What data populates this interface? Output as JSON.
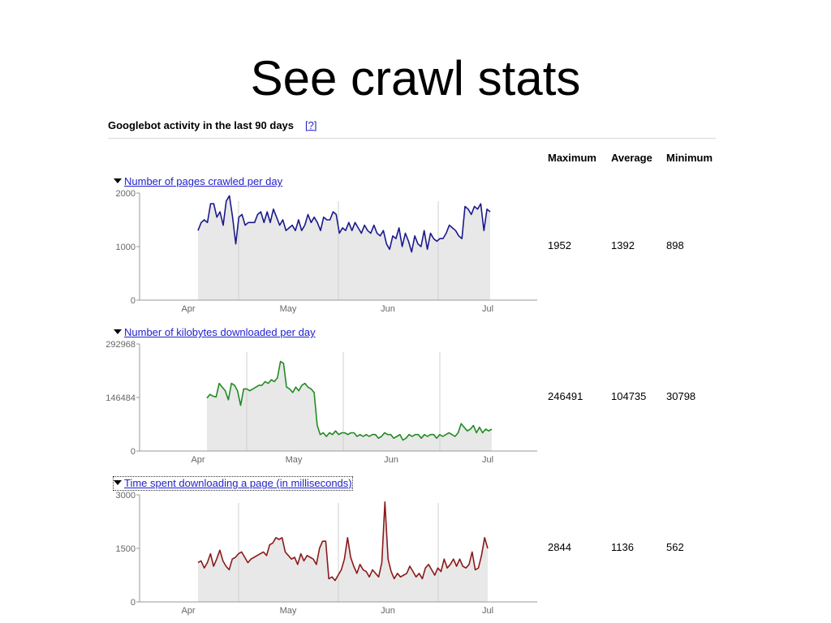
{
  "slide": {
    "title": "See crawl stats"
  },
  "panel": {
    "title": "Googlebot activity in the last 90 days",
    "help_link": "[?]",
    "columns": {
      "maximum": "Maximum",
      "average": "Average",
      "minimum": "Minimum"
    }
  },
  "charts": [
    {
      "label": "Number of pages crawled per day",
      "color": "#1a1a8c",
      "stats": {
        "maximum": "1952",
        "average": "1392",
        "minimum": "898"
      }
    },
    {
      "label": "Number of kilobytes downloaded per day",
      "color": "#228b22",
      "stats": {
        "maximum": "246491",
        "average": "104735",
        "minimum": "30798"
      }
    },
    {
      "label": "Time spent downloading a page (in milliseconds)",
      "color": "#8b1a1a",
      "stats": {
        "maximum": "2844",
        "average": "1136",
        "minimum": "562"
      }
    }
  ],
  "chart_data": [
    {
      "type": "area",
      "title": "Number of pages crawled per day",
      "xlabel": "",
      "ylabel": "",
      "x_ticks": [
        "Apr",
        "May",
        "Jun",
        "Jul"
      ],
      "y_ticks": [
        "2000",
        "1000",
        "0"
      ],
      "ylim": [
        0,
        2000
      ],
      "grid": false,
      "series": [
        {
          "name": "Number of pages crawled per day",
          "color": "#1a1a8c",
          "values": [
            1300,
            1450,
            1500,
            1450,
            1800,
            1800,
            1550,
            1650,
            1400,
            1850,
            1950,
            1550,
            1050,
            1550,
            1600,
            1400,
            1450,
            1450,
            1450,
            1600,
            1650,
            1450,
            1650,
            1450,
            1700,
            1550,
            1400,
            1500,
            1300,
            1350,
            1400,
            1300,
            1500,
            1300,
            1400,
            1600,
            1450,
            1550,
            1450,
            1300,
            1550,
            1500,
            1500,
            1650,
            1600,
            1250,
            1350,
            1300,
            1450,
            1300,
            1450,
            1350,
            1250,
            1400,
            1300,
            1250,
            1400,
            1250,
            1200,
            1300,
            1050,
            950,
            1200,
            1150,
            1350,
            1000,
            1250,
            1100,
            900,
            1200,
            1050,
            1000,
            1300,
            950,
            1250,
            1150,
            1100,
            1150,
            1150,
            1250,
            1400,
            1350,
            1300,
            1200,
            1150,
            1750,
            1700,
            1600,
            1750,
            1700,
            1800,
            1300,
            1700,
            1650
          ]
        }
      ]
    },
    {
      "type": "area",
      "title": "Number of kilobytes downloaded per day",
      "xlabel": "",
      "ylabel": "",
      "x_ticks": [
        "Apr",
        "May",
        "Jun",
        "Jul"
      ],
      "y_ticks": [
        "292968",
        "146484",
        "0"
      ],
      "ylim": [
        0,
        292968
      ],
      "grid": false,
      "series": [
        {
          "name": "Number of kilobytes downloaded per day",
          "color": "#228b22",
          "values": [
            145000,
            155000,
            150000,
            148000,
            185000,
            175000,
            165000,
            140000,
            185000,
            180000,
            165000,
            125000,
            170000,
            170000,
            165000,
            170000,
            175000,
            180000,
            180000,
            190000,
            185000,
            195000,
            190000,
            200000,
            245000,
            240000,
            175000,
            170000,
            160000,
            175000,
            165000,
            180000,
            185000,
            175000,
            170000,
            160000,
            70000,
            45000,
            50000,
            40000,
            50000,
            45000,
            55000,
            45000,
            50000,
            50000,
            45000,
            50000,
            50000,
            40000,
            45000,
            40000,
            45000,
            40000,
            45000,
            45000,
            35000,
            40000,
            50000,
            45000,
            45000,
            35000,
            40000,
            45000,
            30000,
            35000,
            45000,
            40000,
            45000,
            45000,
            35000,
            45000,
            40000,
            45000,
            45000,
            35000,
            45000,
            40000,
            45000,
            50000,
            45000,
            40000,
            50000,
            75000,
            65000,
            55000,
            60000,
            70000,
            50000,
            65000,
            50000,
            60000,
            55000,
            60000
          ]
        }
      ]
    },
    {
      "type": "area",
      "title": "Time spent downloading a page (in milliseconds)",
      "xlabel": "",
      "ylabel": "",
      "x_ticks": [
        "Apr",
        "May",
        "Jun",
        "Jul"
      ],
      "y_ticks": [
        "3000",
        "1500",
        "0"
      ],
      "ylim": [
        0,
        3000
      ],
      "grid": false,
      "series": [
        {
          "name": "Time spent downloading a page (in milliseconds)",
          "color": "#8b1a1a",
          "values": [
            1100,
            1150,
            950,
            1100,
            1350,
            1000,
            1200,
            1450,
            1150,
            1000,
            900,
            1200,
            1250,
            1350,
            1400,
            1250,
            1100,
            1200,
            1250,
            1300,
            1350,
            1400,
            1300,
            1600,
            1650,
            1800,
            1750,
            1800,
            1400,
            1300,
            1200,
            1250,
            1050,
            1350,
            1150,
            1300,
            1250,
            1200,
            1050,
            1500,
            1700,
            1700,
            650,
            700,
            600,
            750,
            900,
            1200,
            1800,
            1250,
            1000,
            800,
            1050,
            900,
            850,
            700,
            900,
            800,
            700,
            1100,
            2800,
            1200,
            850,
            650,
            800,
            700,
            750,
            800,
            1000,
            850,
            700,
            800,
            650,
            950,
            1050,
            900,
            750,
            950,
            850,
            1200,
            950,
            1050,
            1200,
            1000,
            1200,
            1000,
            950,
            1050,
            1400,
            900,
            950,
            1300,
            1800,
            1500
          ]
        }
      ]
    }
  ]
}
